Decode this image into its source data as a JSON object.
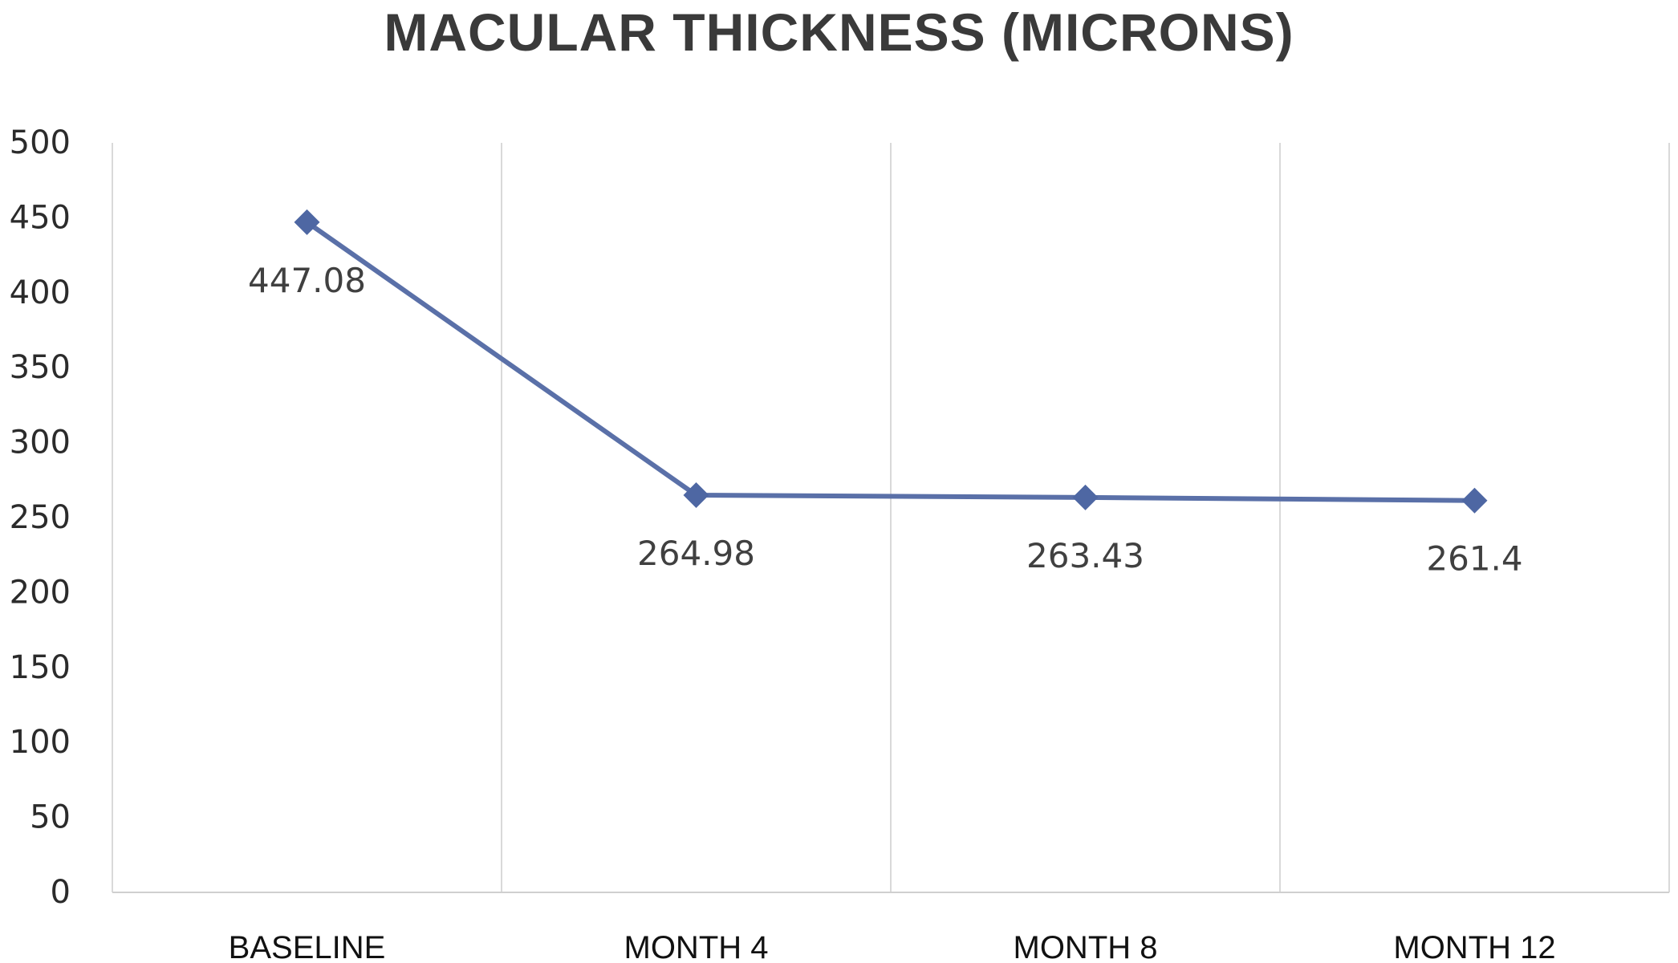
{
  "chart_data": {
    "type": "line",
    "title": "MACULAR THICKNESS (MICRONS)",
    "categories": [
      "BASELINE",
      "MONTH 4",
      "MONTH 8",
      "MONTH 12"
    ],
    "series": [
      {
        "values": [
          447.08,
          264.98,
          263.43,
          261.4
        ]
      }
    ],
    "data_labels": [
      "447.08",
      "264.98",
      "263.43",
      "261.4"
    ],
    "yticks": [
      "0",
      "50",
      "100",
      "150",
      "200",
      "250",
      "300",
      "350",
      "400",
      "450",
      "500"
    ],
    "ylim": [
      0,
      500
    ],
    "grid": "vertical",
    "legend": "none",
    "colors": {
      "line": "#5a70a8",
      "marker": "#4e67a3",
      "grid": "#d9d9d9",
      "axis": "#cfcfcf"
    }
  }
}
